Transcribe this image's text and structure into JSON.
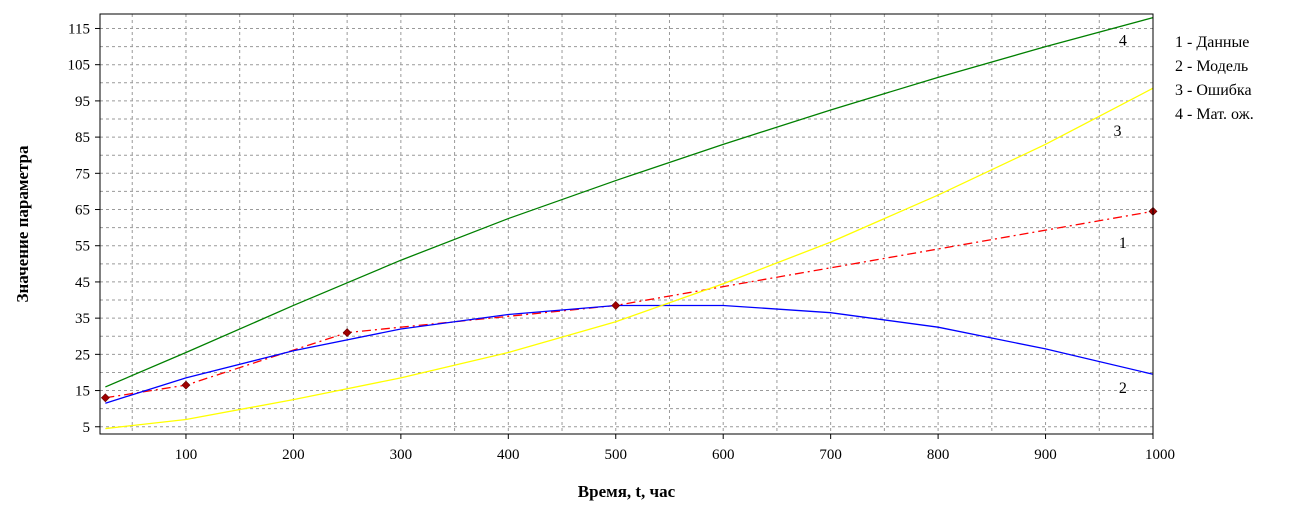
{
  "chart_data": {
    "type": "line",
    "xlabel": "Время, t, час",
    "ylabel": "Значение параметра",
    "xlim": [
      20,
      1000
    ],
    "ylim": [
      3,
      119
    ],
    "x_ticks": [
      100,
      200,
      300,
      400,
      500,
      600,
      700,
      800,
      900,
      1000
    ],
    "y_ticks": [
      5,
      15,
      25,
      35,
      45,
      55,
      65,
      75,
      85,
      95,
      105,
      115
    ],
    "grid": true,
    "legend": {
      "placement": "right",
      "entries": [
        "1 - Данные",
        "2 - Модель",
        "3 - Ошибка",
        "4 - Мат. ож."
      ]
    },
    "series": [
      {
        "id": "1",
        "style": "dash-dot",
        "color": "#ff0000",
        "marker_color": "#a00000",
        "x": [
          25,
          100,
          250,
          500,
          1000
        ],
        "y": [
          13,
          16.5,
          31,
          38.5,
          64.5
        ]
      },
      {
        "id": "2",
        "style": "solid",
        "color": "#0000ff",
        "x": [
          25,
          100,
          200,
          300,
          400,
          500,
          600,
          700,
          800,
          900,
          1000
        ],
        "y": [
          11.5,
          18.5,
          26,
          32,
          36,
          38.5,
          38.5,
          36.5,
          32.5,
          26.5,
          19.5
        ]
      },
      {
        "id": "3",
        "style": "solid",
        "color": "#ffff00",
        "x": [
          25,
          100,
          200,
          300,
          400,
          500,
          600,
          700,
          800,
          900,
          1000
        ],
        "y": [
          4.5,
          7,
          12.5,
          18.5,
          25.5,
          34,
          44.5,
          56,
          69,
          83,
          98.5
        ]
      },
      {
        "id": "4",
        "style": "solid",
        "color": "#008000",
        "x": [
          25,
          100,
          200,
          300,
          400,
          500,
          600,
          700,
          800,
          900,
          1000
        ],
        "y": [
          16,
          25.5,
          38.5,
          51,
          62.5,
          73,
          83,
          92.5,
          101.5,
          110,
          118
        ]
      }
    ],
    "curve_labels": [
      {
        "text": "1",
        "x": 972,
        "y": 56
      },
      {
        "text": "2",
        "x": 972,
        "y": 16
      },
      {
        "text": "3",
        "x": 967,
        "y": 87
      },
      {
        "text": "4",
        "x": 972,
        "y": 112
      }
    ]
  }
}
